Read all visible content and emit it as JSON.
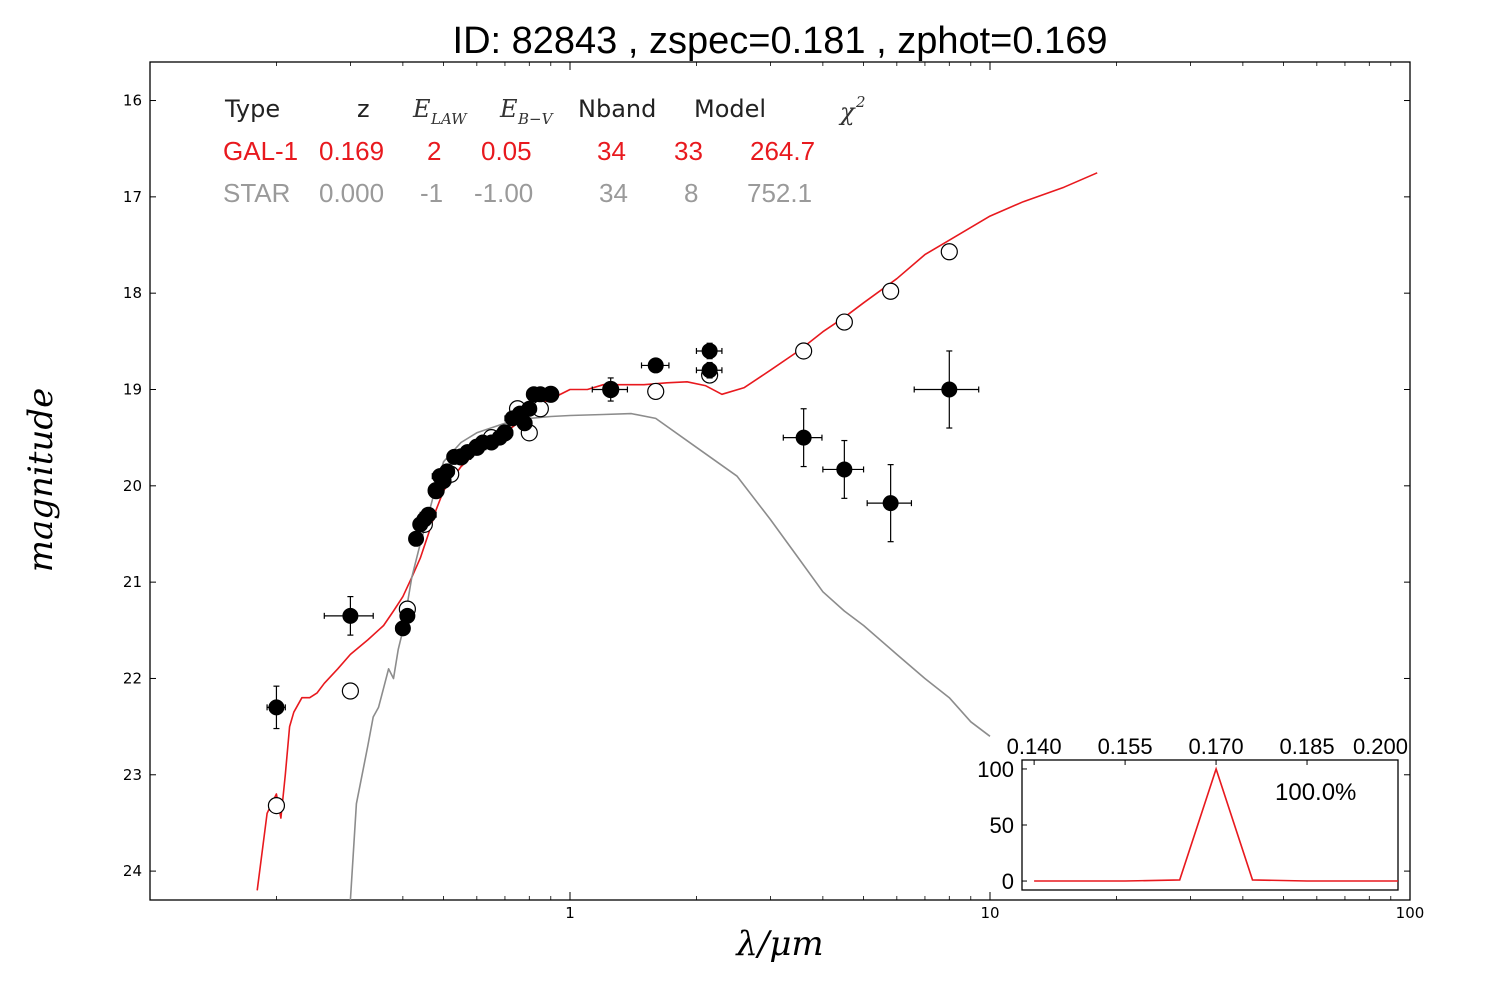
{
  "figure": {
    "title": "ID:  82843 , zspec=0.181 , zphot=0.169",
    "colors": {
      "galaxy": "#e8191e",
      "star": "#8c8c8c",
      "points": "#000000"
    }
  },
  "fit_table": {
    "headers": {
      "type": "Type",
      "z": "z",
      "elaw": "E",
      "elaw_sub": "LAW",
      "ebv": "E",
      "ebv_sub": "B−V",
      "nband": "Nband",
      "model": "Model",
      "chi2": "χ",
      "chi2_sup": "2"
    },
    "rows": [
      {
        "type": "GAL-1",
        "z": "0.169",
        "elaw": "2",
        "ebv": "0.05",
        "nband": "34",
        "model": "33",
        "chi2": "264.7"
      },
      {
        "type": "STAR",
        "z": "0.000",
        "elaw": "-1",
        "ebv": "-1.00",
        "nband": "34",
        "model": "8",
        "chi2": "752.1"
      }
    ]
  },
  "chart_data": [
    {
      "type": "scatter",
      "title": "ID:  82843 , zspec=0.181 , zphot=0.169",
      "xlabel": "λ/μm",
      "ylabel": "magnitude",
      "xscale": "log",
      "xlim": [
        0.1,
        100
      ],
      "ylim": [
        24.3,
        15.6
      ],
      "y_inverted": true,
      "x_ticks": [
        1,
        10,
        100
      ],
      "x_tick_labels": [
        "1",
        "10",
        "100"
      ],
      "y_ticks": [
        16,
        17,
        18,
        19,
        20,
        21,
        22,
        23,
        24
      ],
      "y_tick_labels": [
        "16",
        "17",
        "18",
        "19",
        "20",
        "21",
        "22",
        "23",
        "24"
      ],
      "series": [
        {
          "name": "GAL-1",
          "kind": "line",
          "x": [
            0.18,
            0.19,
            0.2,
            0.205,
            0.21,
            0.215,
            0.22,
            0.23,
            0.24,
            0.25,
            0.26,
            0.28,
            0.3,
            0.33,
            0.36,
            0.38,
            0.4,
            0.42,
            0.44,
            0.46,
            0.48,
            0.5,
            0.52,
            0.55,
            0.6,
            0.65,
            0.7,
            0.75,
            0.8,
            0.85,
            0.9,
            1.0,
            1.1,
            1.2,
            1.3,
            1.5,
            1.7,
            1.9,
            2.1,
            2.3,
            2.6,
            3.0,
            3.5,
            4.0,
            4.5,
            5.0,
            6.0,
            7.0,
            8.0,
            10.0,
            12.0,
            15.0,
            18.0
          ],
          "y": [
            24.2,
            23.4,
            23.2,
            23.45,
            23.0,
            22.5,
            22.35,
            22.2,
            22.2,
            22.15,
            22.05,
            21.9,
            21.75,
            21.6,
            21.45,
            21.3,
            21.15,
            20.95,
            20.75,
            20.5,
            20.25,
            20.05,
            19.95,
            19.8,
            19.65,
            19.55,
            19.45,
            19.35,
            19.25,
            19.15,
            19.1,
            19.0,
            19.0,
            18.95,
            18.95,
            18.95,
            18.93,
            18.92,
            18.96,
            19.05,
            18.98,
            18.8,
            18.6,
            18.4,
            18.25,
            18.1,
            17.85,
            17.6,
            17.45,
            17.2,
            17.05,
            16.9,
            16.75
          ]
        },
        {
          "name": "STAR",
          "kind": "line",
          "x": [
            0.3,
            0.31,
            0.33,
            0.34,
            0.35,
            0.36,
            0.37,
            0.38,
            0.39,
            0.4,
            0.42,
            0.44,
            0.46,
            0.48,
            0.5,
            0.55,
            0.6,
            0.7,
            0.8,
            0.9,
            1.0,
            1.2,
            1.4,
            1.6,
            2.0,
            2.5,
            3.0,
            3.5,
            4.0,
            4.5,
            5.0,
            6.0,
            7.0,
            8.0,
            9.0,
            10.0
          ],
          "y": [
            24.3,
            23.3,
            22.7,
            22.4,
            22.3,
            22.1,
            21.9,
            22.0,
            21.7,
            21.5,
            20.95,
            20.6,
            20.3,
            20.0,
            19.75,
            19.55,
            19.45,
            19.35,
            19.3,
            19.28,
            19.27,
            19.26,
            19.25,
            19.3,
            19.6,
            19.9,
            20.35,
            20.75,
            21.1,
            21.3,
            21.45,
            21.75,
            22.0,
            22.2,
            22.45,
            22.6
          ]
        },
        {
          "name": "observed",
          "kind": "points-filled",
          "x": [
            0.2,
            0.3,
            0.4,
            0.41,
            0.43,
            0.44,
            0.45,
            0.46,
            0.48,
            0.49,
            0.5,
            0.51,
            0.53,
            0.55,
            0.57,
            0.6,
            0.62,
            0.65,
            0.68,
            0.7,
            0.73,
            0.76,
            0.78,
            0.8,
            0.82,
            0.85,
            0.9,
            1.25,
            1.6,
            2.15,
            2.15,
            3.6,
            4.5,
            5.8,
            8.0
          ],
          "y": [
            22.3,
            21.35,
            21.48,
            21.35,
            20.55,
            20.4,
            20.35,
            20.3,
            20.05,
            19.9,
            19.95,
            19.85,
            19.7,
            19.7,
            19.65,
            19.6,
            19.55,
            19.55,
            19.5,
            19.45,
            19.3,
            19.25,
            19.35,
            19.2,
            19.05,
            19.05,
            19.05,
            19.0,
            18.75,
            18.6,
            18.8,
            19.5,
            19.83,
            20.18,
            19.0
          ],
          "xerr": [
            0.01,
            0.04,
            0.015,
            0.012,
            0.01,
            0.015,
            0.015,
            0.02,
            0.015,
            0.02,
            0.02,
            0.02,
            0.02,
            0.03,
            0.02,
            0.03,
            0.03,
            0.03,
            0.03,
            0.03,
            0.03,
            0.03,
            0.03,
            0.03,
            0.03,
            0.03,
            0.03,
            0.12,
            0.12,
            0.15,
            0.15,
            0.38,
            0.5,
            0.7,
            1.4
          ],
          "yerr": [
            0.22,
            0.2,
            0.06,
            0.06,
            0.05,
            0.05,
            0.05,
            0.05,
            0.05,
            0.05,
            0.05,
            0.05,
            0.05,
            0.05,
            0.05,
            0.05,
            0.05,
            0.05,
            0.05,
            0.05,
            0.05,
            0.05,
            0.05,
            0.05,
            0.05,
            0.05,
            0.05,
            0.12,
            0.06,
            0.08,
            0.08,
            0.3,
            0.3,
            0.4,
            0.4
          ]
        },
        {
          "name": "model-predicted",
          "kind": "points-open",
          "x": [
            0.2,
            0.3,
            0.41,
            0.45,
            0.48,
            0.52,
            0.55,
            0.6,
            0.65,
            0.7,
            0.75,
            0.8,
            0.85,
            0.9,
            1.25,
            1.6,
            2.15,
            3.6,
            4.5,
            5.8,
            8.0
          ],
          "y": [
            23.32,
            22.13,
            21.28,
            20.4,
            20.05,
            19.88,
            19.7,
            19.6,
            19.5,
            19.45,
            19.2,
            19.45,
            19.2,
            19.05,
            19.0,
            19.02,
            18.85,
            18.6,
            18.3,
            17.98,
            17.57
          ]
        }
      ]
    },
    {
      "type": "line",
      "name": "redshift-pdf-inset",
      "x": [
        0.14,
        0.155,
        0.164,
        0.17,
        0.176,
        0.185,
        0.2
      ],
      "y": [
        0,
        0,
        1,
        100,
        1,
        0,
        0
      ],
      "xlim": [
        0.138,
        0.2
      ],
      "ylim": [
        -8,
        108
      ],
      "x_ticks": [
        0.14,
        0.155,
        0.17,
        0.185,
        0.2
      ],
      "x_tick_labels": [
        "0.140",
        "0.155",
        "0.170",
        "0.185",
        "0.200"
      ],
      "y_ticks": [
        0,
        50,
        100
      ],
      "y_tick_labels": [
        "0",
        "50",
        "100"
      ],
      "annotation": "100.0%"
    }
  ]
}
